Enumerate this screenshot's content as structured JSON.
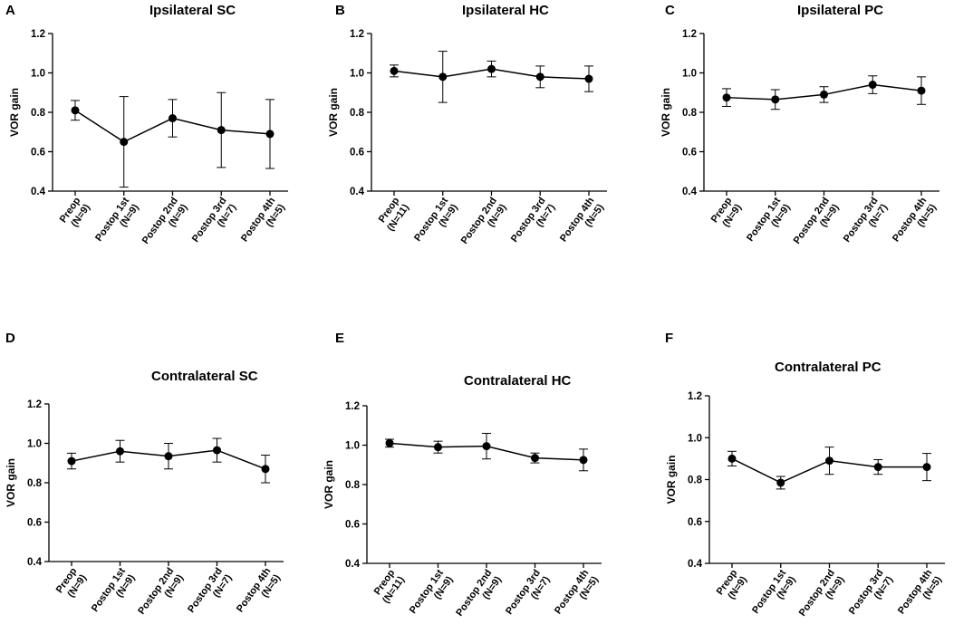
{
  "chart_data": [
    {
      "letter": "A",
      "type": "line",
      "title": "Ipsilateral SC",
      "ylabel": "VOR gain",
      "xlabel": "",
      "ylim": [
        0.4,
        1.2
      ],
      "yticks": [
        "0.4",
        "0.6",
        "0.8",
        "1.0",
        "1.2"
      ],
      "grid": false,
      "categories": [
        [
          "Preop",
          "(N=9)"
        ],
        [
          "Postop 1st",
          "(N=9)"
        ],
        [
          "Postop 2nd",
          "(N=9)"
        ],
        [
          "Postop 3rd",
          "(N=7)"
        ],
        [
          "Postop 4th",
          "(N=5)"
        ]
      ],
      "values": [
        0.81,
        0.65,
        0.77,
        0.71,
        0.69
      ],
      "errors": [
        0.05,
        0.23,
        0.095,
        0.19,
        0.175
      ]
    },
    {
      "letter": "B",
      "type": "line",
      "title": "Ipsilateral HC",
      "ylabel": "VOR gain",
      "xlabel": "",
      "ylim": [
        0.4,
        1.2
      ],
      "yticks": [
        "0.4",
        "0.6",
        "0.8",
        "1.0",
        "1.2"
      ],
      "grid": false,
      "categories": [
        [
          "Preop",
          "(N=11)"
        ],
        [
          "Postop 1st",
          "(N=9)"
        ],
        [
          "Postop 2nd",
          "(N=9)"
        ],
        [
          "Postop 3rd",
          "(N=7)"
        ],
        [
          "Postop 4th",
          "(N=5)"
        ]
      ],
      "values": [
        1.01,
        0.98,
        1.02,
        0.98,
        0.97
      ],
      "errors": [
        0.03,
        0.13,
        0.04,
        0.055,
        0.065
      ]
    },
    {
      "letter": "C",
      "type": "line",
      "title": "Ipsilateral PC",
      "ylabel": "VOR gain",
      "xlabel": "",
      "ylim": [
        0.4,
        1.2
      ],
      "yticks": [
        "0.4",
        "0.6",
        "0.8",
        "1.0",
        "1.2"
      ],
      "grid": false,
      "categories": [
        [
          "Preop",
          "(N=9)"
        ],
        [
          "Postop 1st",
          "(N=9)"
        ],
        [
          "Postop 2nd",
          "(N=9)"
        ],
        [
          "Postop 3rd",
          "(N=7)"
        ],
        [
          "Postop 4th",
          "(N=5)"
        ]
      ],
      "values": [
        0.875,
        0.865,
        0.89,
        0.94,
        0.91
      ],
      "errors": [
        0.045,
        0.05,
        0.04,
        0.045,
        0.07
      ]
    },
    {
      "letter": "D",
      "type": "line",
      "title": "Contralateral SC",
      "ylabel": "VOR gain",
      "xlabel": "",
      "ylim": [
        0.4,
        1.2
      ],
      "yticks": [
        "0.4",
        "0.6",
        "0.8",
        "1.0",
        "1.2"
      ],
      "grid": false,
      "categories": [
        [
          "Preop",
          "(N=9)"
        ],
        [
          "Postop 1st",
          "(N=9)"
        ],
        [
          "Postop 2nd",
          "(N=9)"
        ],
        [
          "Postop 3rd",
          "(N=7)"
        ],
        [
          "Postop 4th",
          "(N=5)"
        ]
      ],
      "values": [
        0.91,
        0.96,
        0.935,
        0.965,
        0.87
      ],
      "errors": [
        0.04,
        0.055,
        0.065,
        0.06,
        0.07
      ]
    },
    {
      "letter": "E",
      "type": "line",
      "title": "Contralateral HC",
      "ylabel": "VOR gain",
      "xlabel": "",
      "ylim": [
        0.4,
        1.2
      ],
      "yticks": [
        "0.4",
        "0.6",
        "0.8",
        "1.0",
        "1.2"
      ],
      "grid": false,
      "categories": [
        [
          "Preop",
          "(N=11)"
        ],
        [
          "Postop 1st",
          "(N=9)"
        ],
        [
          "Postop 2nd",
          "(N=9)"
        ],
        [
          "Postop 3rd",
          "(N=7)"
        ],
        [
          "Postop 4th",
          "(N=5)"
        ]
      ],
      "values": [
        1.01,
        0.99,
        0.995,
        0.935,
        0.925
      ],
      "errors": [
        0.02,
        0.03,
        0.065,
        0.025,
        0.055
      ]
    },
    {
      "letter": "F",
      "type": "line",
      "title": "Contralateral PC",
      "ylabel": "VOR gain",
      "xlabel": "",
      "ylim": [
        0.4,
        1.2
      ],
      "yticks": [
        "0.4",
        "0.6",
        "0.8",
        "1.0",
        "1.2"
      ],
      "grid": false,
      "categories": [
        [
          "Preop",
          "(N=9)"
        ],
        [
          "Postop 1st",
          "(N=9)"
        ],
        [
          "Postop 2nd",
          "(N=9)"
        ],
        [
          "Postop 3rd",
          "(N=7)"
        ],
        [
          "Postop 4th",
          "(N=5)"
        ]
      ],
      "values": [
        0.9,
        0.785,
        0.89,
        0.86,
        0.86
      ],
      "errors": [
        0.035,
        0.03,
        0.065,
        0.035,
        0.065
      ]
    }
  ]
}
